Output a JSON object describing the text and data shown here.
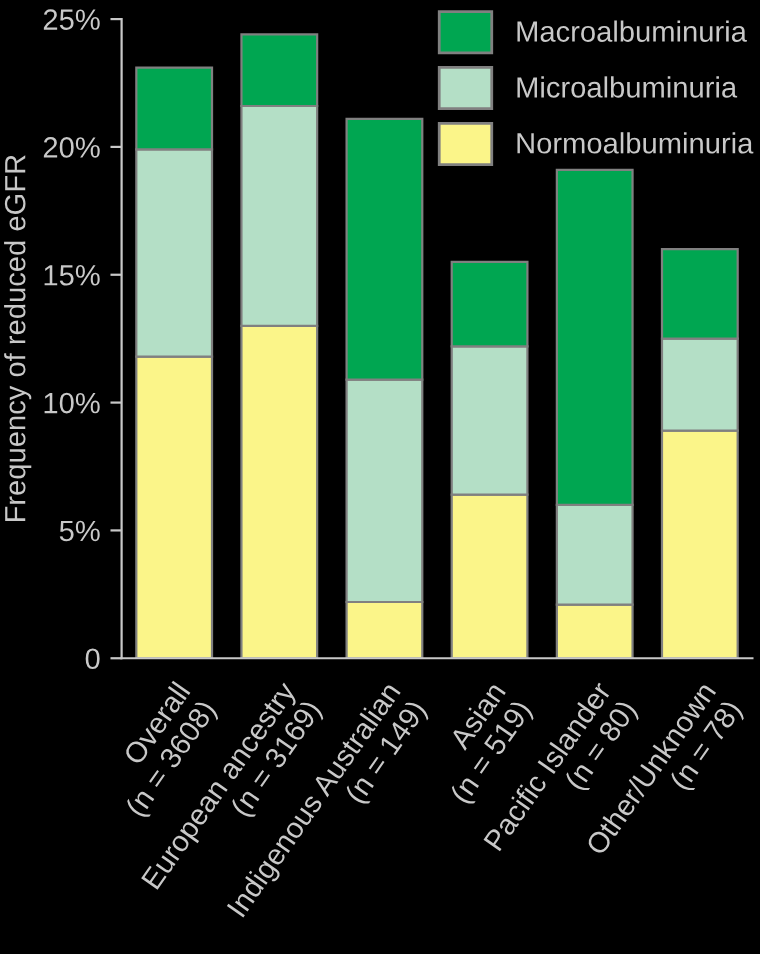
{
  "chart_data": {
    "type": "bar",
    "stacked": true,
    "ylabel": "Frequency of reduced eGFR",
    "categories": [
      "Overall\n(n = 3608)",
      "European ancestry\n(n = 3169)",
      "Indigenous Australian\n(n = 149)",
      "Asian\n(n = 519)",
      "Pacific Islander\n(n = 80)",
      "Other/Unknown\n(n = 78)"
    ],
    "series": [
      {
        "name": "Normoalbuminuria",
        "color": "#fbf589",
        "values": [
          11.8,
          13.0,
          2.2,
          6.4,
          2.1,
          8.9
        ]
      },
      {
        "name": "Microalbuminuria",
        "color": "#b4dfc6",
        "values": [
          8.1,
          8.6,
          8.7,
          5.8,
          3.9,
          3.6
        ]
      },
      {
        "name": "Macroalbuminuria",
        "color": "#00a651",
        "values": [
          3.2,
          2.8,
          10.2,
          3.3,
          13.1,
          3.5
        ]
      }
    ],
    "ylim": [
      0,
      25
    ],
    "yticks": [
      0,
      {
        "value": 5,
        "label": "5%"
      },
      {
        "value": 10,
        "label": "10%"
      },
      {
        "value": 15,
        "label": "15%"
      },
      {
        "value": 20,
        "label": "20%"
      },
      {
        "value": 25,
        "label": "25%"
      }
    ],
    "legend": "top right",
    "grid": false
  }
}
